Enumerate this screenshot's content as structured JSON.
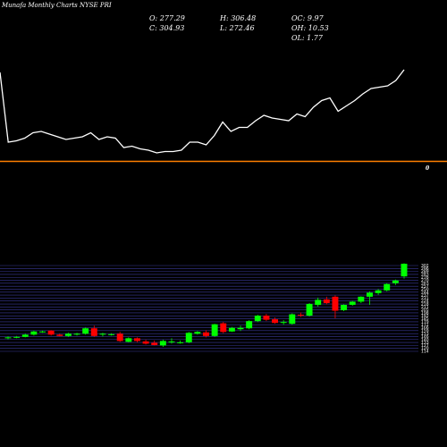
{
  "caption": "Munafa Monthly Charts NYSE PRI",
  "stats": {
    "open": "O: 277.29",
    "high": "H: 306.48",
    "oc": "OC: 9.97",
    "close": "C: 304.93",
    "low": "L: 272.46",
    "oh": "OH: 10.53",
    "ol": "OL: 1.77"
  },
  "colors": {
    "background": "#000000",
    "up": "#00ff00",
    "down": "#ff0000",
    "divider": "#ff7f00",
    "line": "#ffffff",
    "grid": "#3a3a9a"
  },
  "chart_data": [
    {
      "type": "line",
      "note_panel": "price",
      "x_index": [
        0,
        1,
        2,
        3,
        4,
        5,
        6,
        7,
        8,
        9,
        10,
        11,
        12,
        13,
        14,
        15,
        16,
        17,
        18,
        19,
        20,
        21,
        22,
        23,
        24,
        25,
        26,
        27,
        28,
        29,
        30,
        31,
        32,
        33,
        34,
        35,
        36,
        37,
        38,
        39,
        40,
        41,
        42,
        43,
        44,
        45,
        46,
        47,
        48,
        49
      ],
      "values": [
        176,
        124,
        125,
        127,
        131,
        132,
        130,
        128,
        126,
        127,
        128,
        131,
        126,
        128,
        127,
        120,
        121,
        119,
        118,
        116,
        117,
        117,
        118,
        124,
        124,
        122,
        129,
        139,
        132,
        135,
        135,
        140,
        144,
        142,
        141,
        140,
        145,
        143,
        150,
        155,
        157,
        147,
        151,
        155,
        160,
        164,
        165,
        166,
        170,
        178
      ],
      "ylim": [
        100,
        200
      ]
    },
    {
      "type": "candlestick",
      "ticks": [
        "302",
        "296",
        "289",
        "283",
        "276",
        "270",
        "263",
        "257",
        "250",
        "244",
        "237",
        "231",
        "224",
        "218",
        "211",
        "205",
        "198",
        "192",
        "185",
        "179",
        "172",
        "166",
        "159",
        "153",
        "146",
        "140",
        "133",
        "127",
        "120",
        "114"
      ],
      "ylim": [
        111,
        305
      ],
      "zero_label": "0",
      "ohlc": [
        [
          140,
          144,
          138,
          142
        ],
        [
          141,
          145,
          140,
          143
        ],
        [
          143,
          150,
          142,
          148
        ],
        [
          148,
          157,
          146,
          155
        ],
        [
          155,
          157,
          152,
          155
        ],
        [
          157,
          158,
          146,
          148
        ],
        [
          148,
          150,
          144,
          145
        ],
        [
          145,
          152,
          143,
          150
        ],
        [
          148,
          152,
          146,
          150
        ],
        [
          150,
          164,
          148,
          162
        ],
        [
          162,
          168,
          143,
          145
        ],
        [
          148,
          152,
          144,
          150
        ],
        [
          148,
          151,
          146,
          149
        ],
        [
          150,
          154,
          132,
          134
        ],
        [
          132,
          142,
          131,
          140
        ],
        [
          140,
          142,
          131,
          134
        ],
        [
          133,
          137,
          126,
          128
        ],
        [
          130,
          135,
          124,
          125
        ],
        [
          124,
          137,
          121,
          134
        ],
        [
          131,
          140,
          128,
          133
        ],
        [
          130,
          135,
          128,
          131
        ],
        [
          131,
          154,
          129,
          152
        ],
        [
          150,
          156,
          148,
          154
        ],
        [
          153,
          158,
          142,
          145
        ],
        [
          145,
          172,
          143,
          171
        ],
        [
          173,
          176,
          151,
          154
        ],
        [
          155,
          165,
          154,
          163
        ],
        [
          160,
          168,
          156,
          163
        ],
        [
          162,
          180,
          160,
          178
        ],
        [
          178,
          192,
          176,
          190
        ],
        [
          190,
          194,
          178,
          181
        ],
        [
          182,
          186,
          172,
          174
        ],
        [
          174,
          180,
          170,
          176
        ],
        [
          172,
          195,
          170,
          193
        ],
        [
          192,
          197,
          187,
          190
        ],
        [
          190,
          218,
          188,
          216
        ],
        [
          214,
          230,
          210,
          225
        ],
        [
          226,
          232,
          215,
          218
        ],
        [
          232,
          235,
          184,
          201
        ],
        [
          202,
          215,
          200,
          214
        ],
        [
          214,
          223,
          212,
          221
        ],
        [
          221,
          233,
          218,
          232
        ],
        [
          232,
          244,
          214,
          241
        ],
        [
          240,
          249,
          236,
          246
        ],
        [
          246,
          262,
          244,
          260
        ],
        [
          262,
          270,
          258,
          268
        ],
        [
          277,
          306,
          272,
          305
        ]
      ]
    }
  ]
}
